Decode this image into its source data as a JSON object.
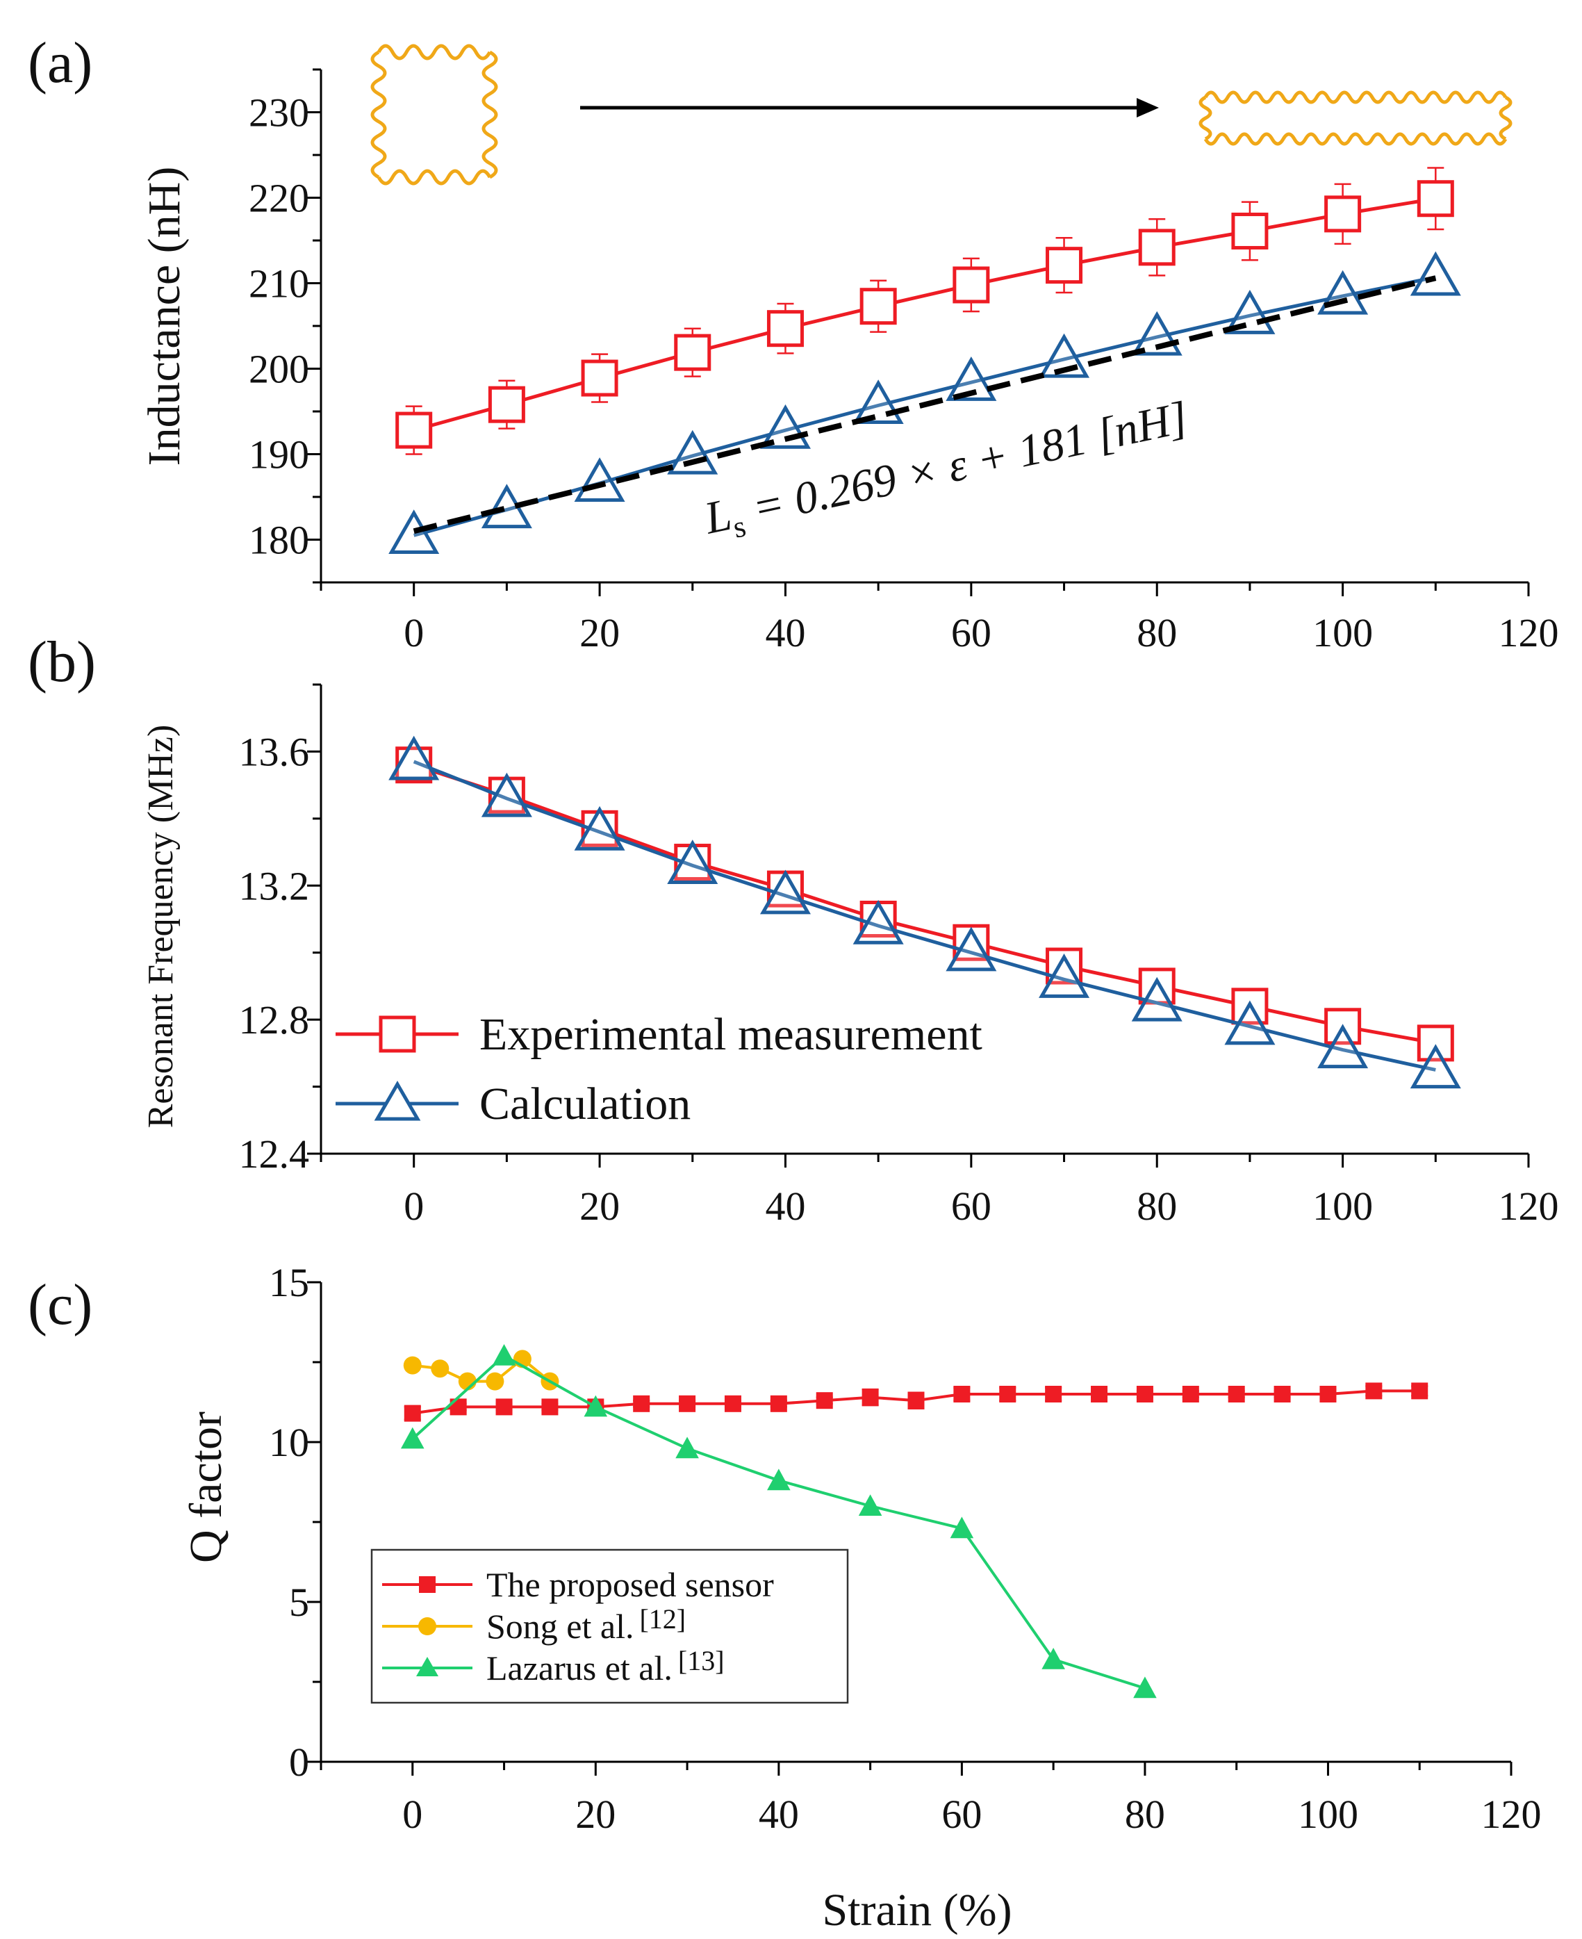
{
  "colors": {
    "experimental": "#ee1c24",
    "calculation": "#1f5f9e",
    "fit": "#000000",
    "proposed": "#ee1c24",
    "song": "#f7b800",
    "lazarus": "#1fcf6f",
    "coil": "#f0a818"
  },
  "chart_data": [
    {
      "id": "a",
      "type": "line",
      "panel_label": "(a)",
      "ylabel": "Inductance (nH)",
      "xlabel": "",
      "xlim": [
        -10,
        120
      ],
      "ylim": [
        175,
        235
      ],
      "x_ticks": [
        0,
        20,
        40,
        60,
        80,
        100,
        120
      ],
      "y_ticks": [
        180,
        190,
        200,
        210,
        220,
        230
      ],
      "x": [
        0,
        10,
        20,
        30,
        40,
        50,
        60,
        70,
        80,
        90,
        100,
        110
      ],
      "series": [
        {
          "name": "Experimental measurement",
          "marker": "open-square",
          "color_key": "experimental",
          "values": [
            192.8,
            195.8,
            198.9,
            201.9,
            204.7,
            207.3,
            209.8,
            212.1,
            214.2,
            216.1,
            218.1,
            219.9
          ],
          "error": [
            2.8,
            2.8,
            2.8,
            2.8,
            2.9,
            3.0,
            3.1,
            3.2,
            3.3,
            3.4,
            3.5,
            3.6
          ]
        },
        {
          "name": "Calculation",
          "marker": "open-triangle",
          "color_key": "calculation",
          "values": [
            180.5,
            183.5,
            186.6,
            189.8,
            192.8,
            195.7,
            198.4,
            201.1,
            203.7,
            206.2,
            208.5,
            210.7
          ]
        },
        {
          "name": "Fit",
          "style": "dashed",
          "color_key": "fit",
          "x": [
            0,
            110
          ],
          "values": [
            181,
            210.6
          ]
        }
      ],
      "annotation": {
        "prefix": "L",
        "subscript": "s",
        "body": " = 0.269 × ε + 181 [",
        "unit": "nH",
        "suffix": "]"
      },
      "inset": "serpentine coil stretched from square to elongated shape"
    },
    {
      "id": "b",
      "type": "line",
      "panel_label": "(b)",
      "ylabel": "Resonant Frequency (MHz)",
      "xlabel": "",
      "xlim": [
        -10,
        120
      ],
      "ylim": [
        12.4,
        13.8
      ],
      "x_ticks": [
        0,
        20,
        40,
        60,
        80,
        100,
        120
      ],
      "y_ticks": [
        "12.4",
        "12.8",
        "13.2",
        "13.6"
      ],
      "x": [
        0,
        10,
        20,
        30,
        40,
        50,
        60,
        70,
        80,
        90,
        100,
        110
      ],
      "series": [
        {
          "name": "Experimental measurement",
          "marker": "open-square",
          "color_key": "experimental",
          "values": [
            13.56,
            13.47,
            13.37,
            13.27,
            13.19,
            13.1,
            13.03,
            12.96,
            12.9,
            12.84,
            12.78,
            12.73
          ],
          "error": [
            0.02,
            0.02,
            0.02,
            0.02,
            0.02,
            0.02,
            0.02,
            0.02,
            0.02,
            0.02,
            0.02,
            0.02
          ]
        },
        {
          "name": "Calculation",
          "marker": "open-triangle",
          "color_key": "calculation",
          "values": [
            13.57,
            13.46,
            13.36,
            13.26,
            13.17,
            13.08,
            13.0,
            12.92,
            12.85,
            12.78,
            12.71,
            12.65
          ]
        }
      ],
      "legend": {
        "placement": "bottom-left",
        "entries": [
          "Experimental measurement",
          "Calculation"
        ]
      }
    },
    {
      "id": "c",
      "type": "line",
      "panel_label": "(c)",
      "ylabel": "Q factor",
      "xlabel": "Strain (%)",
      "xlim": [
        -10,
        120
      ],
      "ylim": [
        0,
        15
      ],
      "x_ticks": [
        0,
        20,
        40,
        60,
        80,
        100,
        120
      ],
      "y_ticks": [
        0,
        5,
        10,
        15
      ],
      "series": [
        {
          "name": "The proposed sensor",
          "marker": "filled-square",
          "color_key": "proposed",
          "x": [
            0,
            5,
            10,
            15,
            20,
            25,
            30,
            35,
            40,
            45,
            50,
            55,
            60,
            65,
            70,
            75,
            80,
            85,
            90,
            95,
            100,
            105,
            110
          ],
          "values": [
            10.9,
            11.1,
            11.1,
            11.1,
            11.1,
            11.2,
            11.2,
            11.2,
            11.2,
            11.3,
            11.4,
            11.3,
            11.5,
            11.5,
            11.5,
            11.5,
            11.5,
            11.5,
            11.5,
            11.5,
            11.5,
            11.6,
            11.6
          ],
          "error": [
            0.2,
            0.1,
            0.1,
            0.1,
            0.1,
            0.1,
            0.1,
            0.1,
            0.1,
            0.1,
            0.25,
            0.25,
            0.2,
            0.2,
            0.2,
            0.1,
            0.1,
            0.1,
            0.1,
            0.1,
            0.15,
            0.15,
            0.15
          ]
        },
        {
          "name": "Song et al.",
          "ref": "[12]",
          "marker": "filled-circle",
          "color_key": "song",
          "x": [
            0,
            3,
            6,
            9,
            12,
            15
          ],
          "values": [
            12.4,
            12.3,
            11.9,
            11.9,
            12.6,
            11.9
          ]
        },
        {
          "name": "Lazarus et al.",
          "ref": "[13]",
          "marker": "filled-triangle",
          "color_key": "lazarus",
          "x": [
            0,
            10,
            20,
            30,
            40,
            50,
            60,
            70,
            80
          ],
          "values": [
            10.1,
            12.7,
            11.1,
            9.8,
            8.8,
            8.0,
            7.3,
            3.2,
            2.3
          ]
        }
      ],
      "legend": {
        "placement": "bottom-left",
        "entries": [
          "The proposed sensor",
          "Song et al.",
          "Lazarus et al."
        ]
      }
    }
  ]
}
